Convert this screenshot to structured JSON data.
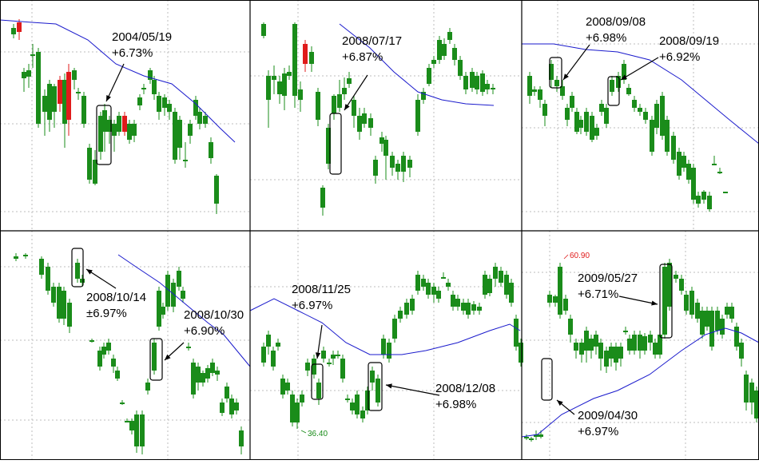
{
  "colors": {
    "up": "#e01b1b",
    "down": "#1a8c1a",
    "ma": "#1a1acc",
    "grid": "#bdbdbd",
    "border": "#000000",
    "annot": "#000000"
  },
  "chart_data": [
    {
      "type": "candlestick",
      "grid": true,
      "annotations": [
        {
          "date": "2004/05/19",
          "change": "+6.73%"
        }
      ],
      "price_labels": []
    },
    {
      "type": "candlestick",
      "grid": true,
      "annotations": [
        {
          "date": "2008/07/17",
          "change": "+6.87%"
        }
      ],
      "price_labels": []
    },
    {
      "type": "candlestick",
      "grid": true,
      "annotations": [
        {
          "date": "2008/09/08",
          "change": "+6.98%"
        },
        {
          "date": "2008/09/19",
          "change": "+6.92%"
        }
      ],
      "price_labels": []
    },
    {
      "type": "candlestick",
      "grid": true,
      "annotations": [
        {
          "date": "2008/10/14",
          "change": "±6.97%"
        },
        {
          "date": "2008/10/30",
          "change": "+6.90%"
        }
      ],
      "price_labels": []
    },
    {
      "type": "candlestick",
      "grid": true,
      "annotations": [
        {
          "date": "2008/11/25",
          "change": "+6.97%"
        },
        {
          "date": "2008/12/08",
          "change": "+6.98%"
        }
      ],
      "price_labels": [
        {
          "text": "36.40",
          "kind": "low"
        }
      ]
    },
    {
      "type": "candlestick",
      "grid": true,
      "annotations": [
        {
          "date": "2009/05/27",
          "change": "+6.71%"
        },
        {
          "date": "2009/04/30",
          "change": "+6.97%"
        }
      ],
      "price_labels": [
        {
          "text": "60.90",
          "kind": "high"
        }
      ]
    }
  ]
}
